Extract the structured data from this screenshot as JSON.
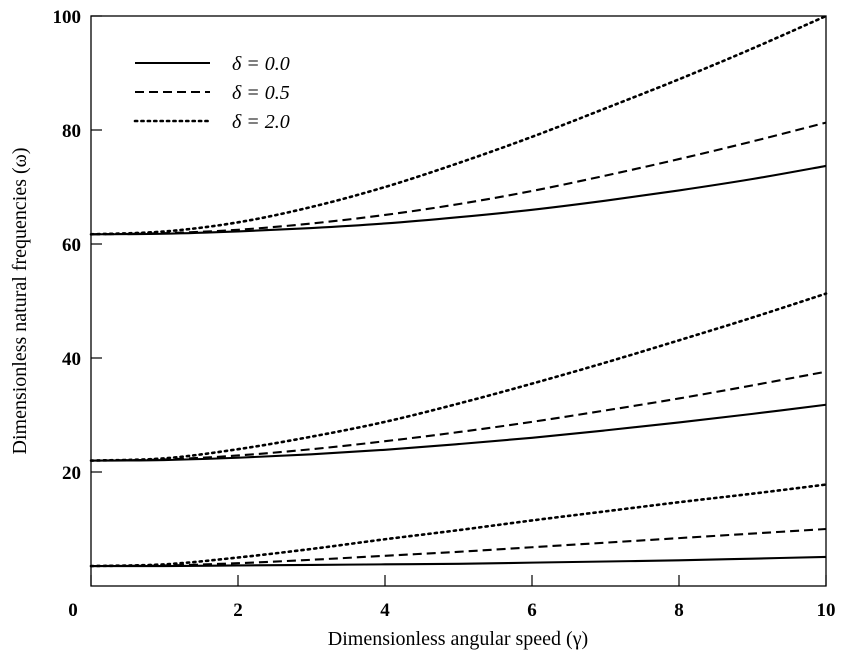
{
  "chart_data": {
    "type": "line",
    "title": "",
    "xlabel": "Dimensionless angular speed (γ)",
    "ylabel": "Dimensionless natural frequencies (ω)",
    "xlim": [
      0,
      10
    ],
    "ylim": [
      0,
      100
    ],
    "xticks": [
      "0",
      "2",
      "4",
      "6",
      "8",
      "10"
    ],
    "yticks": [
      "20",
      "40",
      "60",
      "80",
      "100"
    ],
    "grid": false,
    "legend_position": "top-left",
    "series": [
      {
        "name": "δ = 0.0",
        "style": "solid",
        "color": "#000000",
        "curves": [
          {
            "x": [
              0,
              1,
              2,
              3,
              4,
              5,
              6,
              7,
              8,
              9,
              10
            ],
            "y": [
              3.5,
              3.5,
              3.6,
              3.7,
              3.8,
              3.9,
              4.1,
              4.3,
              4.5,
              4.8,
              5.1
            ]
          },
          {
            "x": [
              0,
              1,
              2,
              3,
              4,
              5,
              6,
              7,
              8,
              9,
              10
            ],
            "y": [
              22.0,
              22.1,
              22.5,
              23.1,
              23.9,
              24.9,
              26.0,
              27.3,
              28.7,
              30.2,
              31.8
            ]
          },
          {
            "x": [
              0,
              1,
              2,
              3,
              4,
              5,
              6,
              7,
              8,
              9,
              10
            ],
            "y": [
              61.7,
              61.8,
              62.2,
              62.8,
              63.6,
              64.7,
              66.0,
              67.6,
              69.4,
              71.4,
              73.7
            ]
          }
        ]
      },
      {
        "name": "δ = 0.5",
        "style": "dashed",
        "color": "#000000",
        "curves": [
          {
            "x": [
              0,
              1,
              2,
              3,
              4,
              5,
              6,
              7,
              8,
              9,
              10
            ],
            "y": [
              3.5,
              3.6,
              4.0,
              4.6,
              5.3,
              6.0,
              6.8,
              7.6,
              8.4,
              9.2,
              10.0
            ]
          },
          {
            "x": [
              0,
              1,
              2,
              3,
              4,
              5,
              6,
              7,
              8,
              9,
              10
            ],
            "y": [
              22.0,
              22.2,
              22.9,
              24.0,
              25.4,
              27.0,
              28.8,
              30.8,
              32.9,
              35.2,
              37.6
            ]
          },
          {
            "x": [
              0,
              1,
              2,
              3,
              4,
              5,
              6,
              7,
              8,
              9,
              10
            ],
            "y": [
              61.7,
              61.9,
              62.5,
              63.6,
              65.1,
              67.0,
              69.3,
              72.0,
              74.9,
              78.0,
              81.3
            ]
          }
        ]
      },
      {
        "name": "δ = 2.0",
        "style": "dotted",
        "color": "#000000",
        "curves": [
          {
            "x": [
              0,
              1,
              2,
              3,
              4,
              5,
              6,
              7,
              8,
              9,
              10
            ],
            "y": [
              3.5,
              3.8,
              5.0,
              6.5,
              8.2,
              9.8,
              11.5,
              13.1,
              14.7,
              16.2,
              17.8
            ]
          },
          {
            "x": [
              0,
              1,
              2,
              3,
              4,
              5,
              6,
              7,
              8,
              9,
              10
            ],
            "y": [
              22.0,
              22.4,
              24.0,
              26.2,
              28.8,
              32.0,
              35.5,
              39.2,
              43.1,
              47.1,
              51.3
            ]
          },
          {
            "x": [
              0,
              1,
              2,
              3,
              4,
              5,
              6,
              7,
              8,
              9,
              10
            ],
            "y": [
              61.7,
              62.2,
              63.8,
              66.5,
              70.0,
              74.2,
              78.8,
              83.8,
              88.9,
              94.3,
              100.0
            ]
          }
        ]
      }
    ]
  }
}
